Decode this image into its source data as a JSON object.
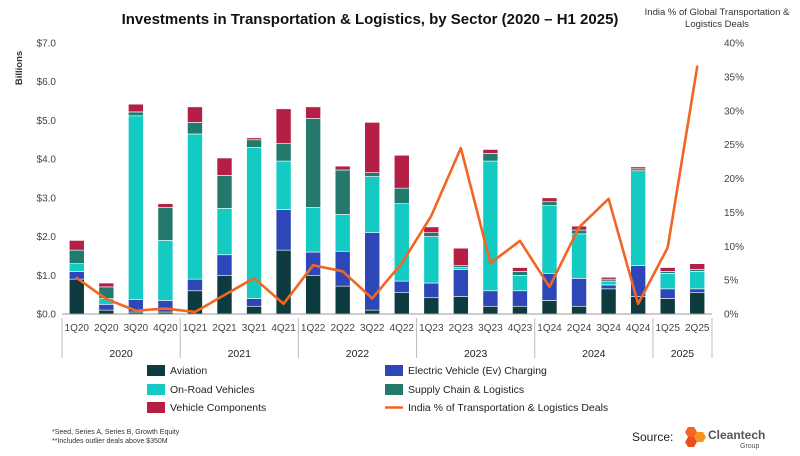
{
  "chart_data": {
    "type": "bar",
    "title": "Investments in Transportation & Logistics, by Sector (2020 – H1 2025)",
    "ylabel": "Billions",
    "y2label": "India % of Global Transportation & Logistics Deals",
    "ylim": [
      0,
      7
    ],
    "y_ticks": [
      "$0.0",
      "$1.0",
      "$2.0",
      "$3.0",
      "$4.0",
      "$5.0",
      "$6.0",
      "$7.0"
    ],
    "y2lim": [
      0,
      40
    ],
    "y2_ticks": [
      "0%",
      "5%",
      "10%",
      "15%",
      "20%",
      "25%",
      "30%",
      "35%",
      "40%"
    ],
    "categories": [
      "1Q20",
      "2Q20",
      "3Q20",
      "4Q20",
      "1Q21",
      "2Q21",
      "3Q21",
      "4Q21",
      "1Q22",
      "2Q22",
      "3Q22",
      "4Q22",
      "1Q23",
      "2Q23",
      "3Q23",
      "4Q23",
      "1Q24",
      "2Q24",
      "3Q24",
      "4Q24",
      "1Q25",
      "2Q25"
    ],
    "groups": [
      {
        "label": "2020",
        "start": 0,
        "end": 3
      },
      {
        "label": "2021",
        "start": 4,
        "end": 7
      },
      {
        "label": "2022",
        "start": 8,
        "end": 11
      },
      {
        "label": "2023",
        "start": 12,
        "end": 15
      },
      {
        "label": "2024",
        "start": 16,
        "end": 19
      },
      {
        "label": "2025",
        "start": 20,
        "end": 21
      }
    ],
    "stacked": true,
    "series": [
      {
        "name": "Aviation",
        "color": "#0d3b3f",
        "values": [
          0.9,
          0.1,
          0.05,
          0.05,
          0.6,
          1.0,
          0.2,
          1.65,
          1.0,
          0.72,
          0.1,
          0.55,
          0.42,
          0.45,
          0.2,
          0.2,
          0.35,
          0.2,
          0.65,
          0.45,
          0.4,
          0.55
        ]
      },
      {
        "name": "Electric Vehicle (Ev) Charging",
        "color": "#2e47b8",
        "values": [
          0.2,
          0.15,
          0.32,
          0.3,
          0.3,
          0.53,
          0.2,
          1.05,
          0.6,
          0.9,
          2.0,
          0.3,
          0.38,
          0.7,
          0.4,
          0.4,
          0.7,
          0.72,
          0.1,
          0.8,
          0.25,
          0.1
        ]
      },
      {
        "name": "On-Road Vehicles",
        "color": "#14cbc4",
        "values": [
          0.2,
          0.15,
          4.75,
          1.55,
          3.75,
          1.2,
          3.9,
          1.25,
          1.15,
          0.95,
          1.45,
          2.0,
          1.2,
          0.05,
          3.35,
          0.4,
          1.75,
          1.15,
          0.1,
          2.45,
          0.4,
          0.45
        ]
      },
      {
        "name": "Supply Chain & Logistics",
        "color": "#237a6c",
        "values": [
          0.35,
          0.3,
          0.1,
          0.85,
          0.3,
          0.85,
          0.2,
          0.45,
          2.3,
          1.15,
          0.1,
          0.4,
          0.1,
          0.05,
          0.2,
          0.1,
          0.1,
          0.1,
          0.05,
          0.05,
          0.05,
          0.05
        ]
      },
      {
        "name": "Vehicle Components",
        "color": "#b51f45",
        "values": [
          0.25,
          0.1,
          0.2,
          0.1,
          0.4,
          0.45,
          0.05,
          0.9,
          0.3,
          0.1,
          1.3,
          0.85,
          0.15,
          0.45,
          0.1,
          0.1,
          0.1,
          0.1,
          0.05,
          0.05,
          0.1,
          0.15
        ]
      }
    ],
    "line": {
      "name": "India % of Transportation & Logistics Deals",
      "color": "#f26522",
      "values": [
        5.3,
        2.2,
        0.5,
        0.8,
        0.3,
        2.8,
        5.3,
        1.5,
        7.2,
        6.3,
        2.3,
        7.5,
        14.5,
        24.5,
        7.5,
        10.8,
        4.0,
        12.8,
        17.0,
        1.5,
        9.8,
        36.5
      ]
    },
    "legend_position": "bottom",
    "grid": false
  },
  "legend_labels": [
    "Aviation",
    "Electric Vehicle (Ev) Charging",
    "On-Road Vehicles",
    "Supply Chain & Logistics",
    "Vehicle Components",
    "India % of Transportation & Logistics Deals"
  ],
  "footnotes": [
    "*Seed, Series A, Series B, Growth Equity",
    "**Includes outlier deals above $350M"
  ],
  "source_label": "Source:",
  "brand": {
    "name": "Cleantech",
    "sub": "Group",
    "color": "#f26522"
  }
}
